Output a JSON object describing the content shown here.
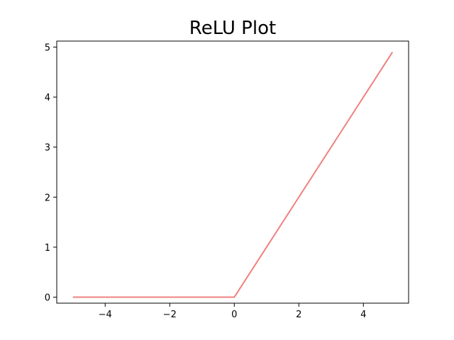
{
  "chart_data": {
    "type": "line",
    "title": "ReLU Plot",
    "xlabel": "",
    "ylabel": "",
    "xlim": [
      -5.5,
      5.4
    ],
    "ylim": [
      -0.12,
      5.12
    ],
    "xticks": [
      -4,
      -2,
      0,
      2,
      4
    ],
    "yticks": [
      0,
      1,
      2,
      3,
      4,
      5
    ],
    "xtick_labels": [
      "−4",
      "−2",
      "0",
      "2",
      "4"
    ],
    "ytick_labels": [
      "0",
      "1",
      "2",
      "3",
      "4",
      "5"
    ],
    "grid": false,
    "legend": "none",
    "series": [
      {
        "color": "#f08080",
        "x": [
          -5.0,
          0.0,
          4.9
        ],
        "y": [
          0.0,
          0.0,
          4.9
        ]
      }
    ]
  }
}
